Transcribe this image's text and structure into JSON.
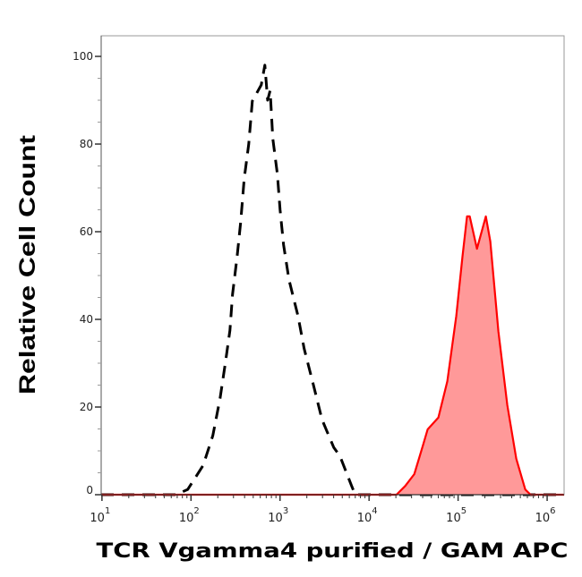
{
  "chart_data": {
    "type": "area",
    "title": "",
    "xlabel": "TCR Vgamma4 purified / GAM APC",
    "ylabel": "Relative Cell Count",
    "x_scale": "log",
    "xlim": [
      9.8,
      1550000
    ],
    "ylim": [
      0,
      104.7
    ],
    "grid": false,
    "x_ticks": [
      {
        "value": 10,
        "base": "10",
        "exp": "1"
      },
      {
        "value": 100,
        "base": "10",
        "exp": "2"
      },
      {
        "value": 1000,
        "base": "10",
        "exp": "3"
      },
      {
        "value": 10000,
        "base": "10",
        "exp": "4"
      },
      {
        "value": 100000,
        "base": "10",
        "exp": "5"
      },
      {
        "value": 1000000,
        "base": "10",
        "exp": "6"
      }
    ],
    "y_ticks": [
      {
        "value": 0,
        "label": "0"
      },
      {
        "value": 20,
        "label": "20"
      },
      {
        "value": 40,
        "label": "40"
      },
      {
        "value": 60,
        "label": "60"
      },
      {
        "value": 80,
        "label": "80"
      },
      {
        "value": 100,
        "label": "100"
      }
    ],
    "series": [
      {
        "style": "dashed",
        "color": "#000000",
        "fill": "none",
        "x": [
          9.8,
          68,
          92,
          137,
          176,
          212,
          244,
          274,
          293,
          329,
          361,
          396,
          445,
          488,
          615,
          675,
          725,
          775,
          830,
          933,
          1000,
          1096,
          1262,
          1589,
          1868,
          2354,
          2964,
          4009,
          4710,
          6370,
          6980,
          1550000
        ],
        "y": [
          0,
          0,
          1.2,
          6.7,
          13.5,
          22.0,
          30.2,
          37.5,
          45.7,
          54.1,
          62.2,
          72.0,
          80.0,
          89.8,
          93.5,
          98.0,
          90.0,
          92.2,
          81.2,
          73.1,
          65.0,
          57.0,
          49.0,
          40.8,
          33.3,
          25.3,
          17.1,
          10.8,
          8.8,
          2.0,
          0,
          0
        ]
      },
      {
        "style": "solid",
        "color": "#ff0000",
        "fill": "#ff9999",
        "x": [
          9.8,
          20300,
          25500,
          32200,
          40500,
          45500,
          60100,
          75700,
          95500,
          112000,
          126000,
          135000,
          163000,
          205000,
          230000,
          283000,
          357000,
          450000,
          567000,
          651000,
          1550000
        ],
        "y": [
          0,
          0,
          2.0,
          4.7,
          11.4,
          14.9,
          17.6,
          25.9,
          40.8,
          54.3,
          63.5,
          63.5,
          56.1,
          63.5,
          57.8,
          37.3,
          20.4,
          8.2,
          1.2,
          0,
          0
        ]
      }
    ]
  }
}
